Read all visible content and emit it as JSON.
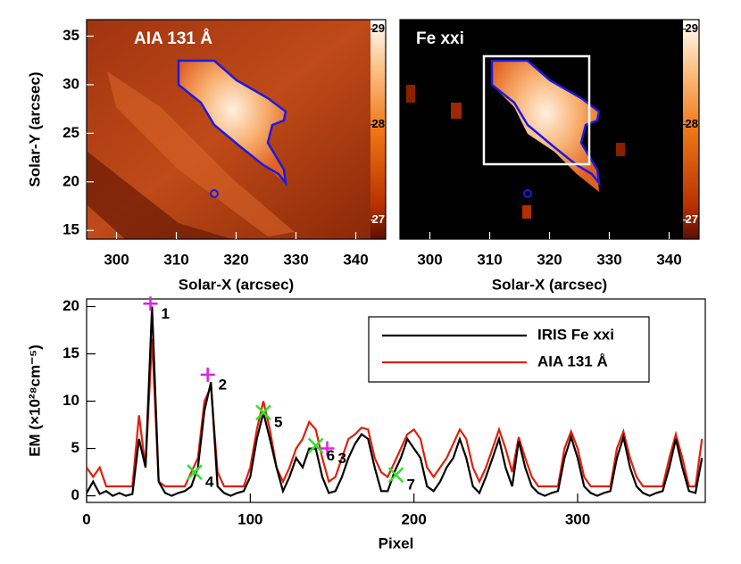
{
  "chart_data": [
    {
      "type": "image",
      "title": "AIA 131 Å",
      "xlabel": "Solar-X (arcsec)",
      "ylabel": "Solar-Y (arcsec)",
      "xlim": [
        295,
        345
      ],
      "ylim": [
        14.1,
        36.7
      ],
      "xticks": [
        300,
        310,
        320,
        330,
        340
      ],
      "yticks": [
        15,
        20,
        25,
        30,
        35
      ],
      "colorbar": {
        "lim": [
          26.8,
          29.1
        ],
        "ticks": [
          27,
          28,
          29
        ]
      }
    },
    {
      "type": "image",
      "title": "Fe xxi",
      "xlabel": "Solar-X (arcsec)",
      "xlim": [
        295,
        345
      ],
      "xticks": [
        300,
        310,
        320,
        330,
        340
      ],
      "colorbar": {
        "lim": [
          26.8,
          29.1
        ],
        "ticks": [
          27,
          28,
          29
        ]
      }
    },
    {
      "type": "line",
      "xlabel": "Pixel",
      "ylabel": "EM (×10²⁸cm⁻⁵)",
      "xlim": [
        0,
        378
      ],
      "ylim": [
        -0.7,
        20.8
      ],
      "xticks": [
        0,
        100,
        200,
        300
      ],
      "yticks": [
        0,
        5,
        10,
        15,
        20
      ],
      "x": [
        0,
        4,
        8,
        12,
        16,
        20,
        24,
        28,
        32,
        36,
        40,
        44,
        48,
        52,
        56,
        60,
        64,
        68,
        72,
        76,
        80,
        84,
        88,
        92,
        96,
        100,
        104,
        108,
        112,
        116,
        120,
        124,
        128,
        132,
        136,
        140,
        144,
        148,
        152,
        156,
        160,
        164,
        168,
        172,
        176,
        180,
        184,
        188,
        192,
        196,
        200,
        204,
        208,
        212,
        216,
        220,
        224,
        228,
        232,
        236,
        240,
        244,
        248,
        252,
        256,
        260,
        264,
        268,
        272,
        276,
        280,
        284,
        288,
        292,
        296,
        300,
        304,
        308,
        312,
        316,
        320,
        324,
        328,
        332,
        336,
        340,
        344,
        348,
        352,
        356,
        360,
        364,
        368,
        372,
        376
      ],
      "series": [
        {
          "name": "IRIS Fe xxi",
          "color": "#000000",
          "values": [
            0.3,
            1.5,
            0.2,
            0.5,
            0,
            0.3,
            0,
            0.2,
            6,
            3,
            20,
            1.5,
            0.3,
            0,
            0.3,
            0.5,
            1,
            3,
            9,
            12,
            1,
            0.3,
            0,
            0.3,
            0.5,
            2,
            6,
            8.8,
            6,
            3,
            0.5,
            2,
            4,
            3,
            5,
            5,
            2,
            0.3,
            0.5,
            2,
            4,
            5.5,
            6.5,
            6,
            3,
            0.5,
            0.5,
            2.5,
            4,
            6,
            5,
            4,
            1,
            0.5,
            1.5,
            3,
            4,
            6,
            4,
            1,
            0.3,
            2,
            4,
            6,
            3,
            1,
            5.8,
            3,
            1,
            0.3,
            0,
            0.3,
            0.5,
            4,
            6.2,
            4,
            1,
            0.3,
            0,
            0.3,
            0.5,
            4,
            6.2,
            3,
            1,
            0.3,
            0,
            0.3,
            0.5,
            3,
            6,
            3,
            0.5,
            0.3,
            4
          ]
        },
        {
          "name": "AIA 131 Å",
          "color": "#e0200a",
          "values": [
            3,
            2,
            3,
            1,
            1,
            1,
            1,
            1,
            8.5,
            3,
            16.6,
            1.5,
            1,
            1,
            1,
            1,
            2.5,
            4,
            10,
            11.5,
            2.5,
            1,
            1,
            1,
            1,
            3,
            7,
            10,
            7,
            3,
            1.5,
            3,
            5,
            6,
            7.8,
            7,
            4,
            1.5,
            2,
            4,
            6,
            6.5,
            7.2,
            7,
            4,
            2.5,
            2,
            3.5,
            5,
            6.5,
            7,
            6,
            3,
            2,
            3,
            4,
            5.5,
            7,
            6,
            3,
            1.5,
            3,
            5,
            7,
            5,
            2.5,
            6.2,
            4,
            2,
            1,
            1,
            1,
            1,
            5,
            6.8,
            5,
            2,
            1,
            1,
            1,
            1,
            5,
            6.8,
            4,
            2,
            1,
            1,
            1,
            1,
            4,
            6.5,
            4,
            1,
            1,
            6
          ]
        }
      ],
      "markers": [
        {
          "label": "1",
          "x": 39,
          "y": 20.3,
          "color": "#e020e0",
          "symbol": "plus"
        },
        {
          "label": "2",
          "x": 74,
          "y": 12.8,
          "color": "#e020e0",
          "symbol": "plus"
        },
        {
          "label": "3",
          "x": 147,
          "y": 5.0,
          "color": "#e020e0",
          "symbol": "plus"
        },
        {
          "label": "4",
          "x": 66,
          "y": 2.5,
          "color": "#30e030",
          "symbol": "cross"
        },
        {
          "label": "5",
          "x": 108,
          "y": 8.8,
          "color": "#30e030",
          "symbol": "cross"
        },
        {
          "label": "6",
          "x": 140,
          "y": 5.3,
          "color": "#30e030",
          "symbol": "cross"
        },
        {
          "label": "7",
          "x": 189,
          "y": 2.2,
          "color": "#30e030",
          "symbol": "cross"
        }
      ]
    }
  ]
}
